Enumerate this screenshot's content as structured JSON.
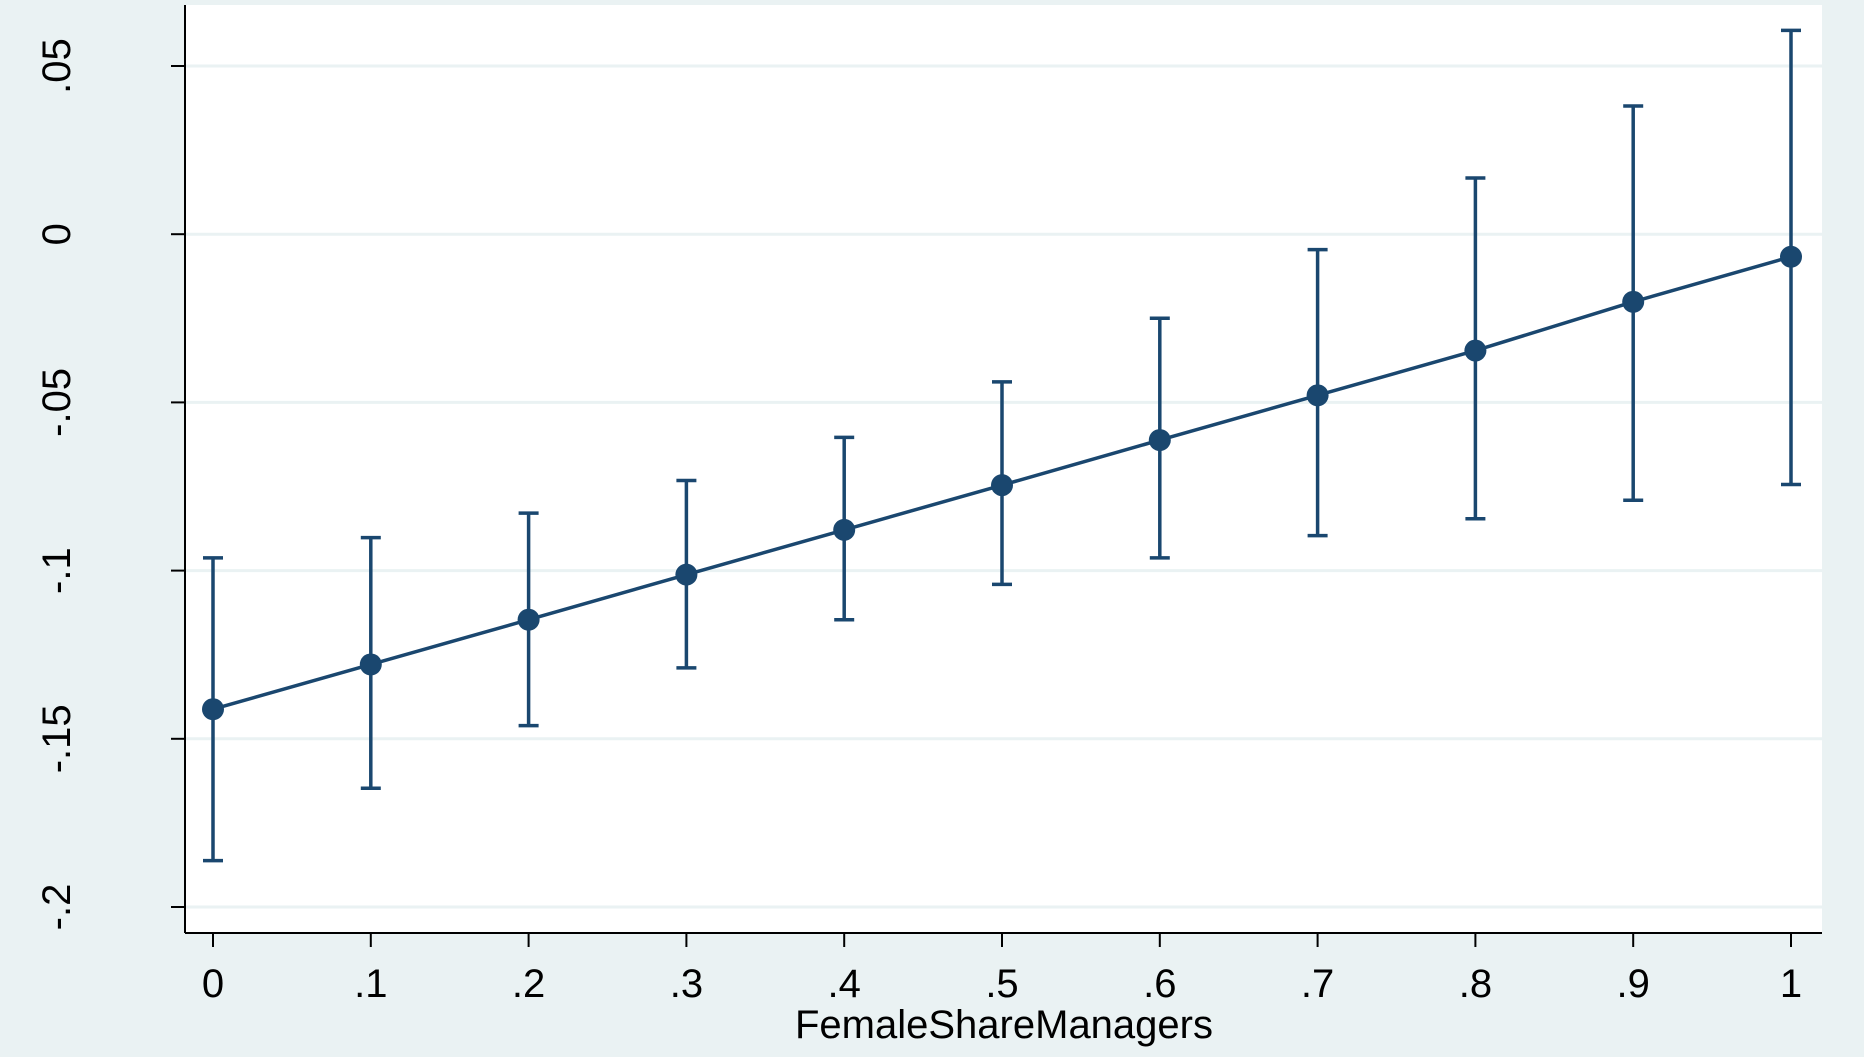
{
  "chart_data": {
    "type": "line",
    "title": "",
    "xlabel": "FemaleShareManagers",
    "ylabel": "",
    "xlim": [
      0,
      1
    ],
    "ylim": [
      -0.2,
      0.05
    ],
    "x_ticks": [
      {
        "value": 0,
        "label": "0"
      },
      {
        "value": 0.1,
        "label": ".1"
      },
      {
        "value": 0.2,
        "label": ".2"
      },
      {
        "value": 0.3,
        "label": ".3"
      },
      {
        "value": 0.4,
        "label": ".4"
      },
      {
        "value": 0.5,
        "label": ".5"
      },
      {
        "value": 0.6,
        "label": ".6"
      },
      {
        "value": 0.7,
        "label": ".7"
      },
      {
        "value": 0.8,
        "label": ".8"
      },
      {
        "value": 0.9,
        "label": ".9"
      },
      {
        "value": 1,
        "label": "1"
      }
    ],
    "y_ticks": [
      {
        "value": 0.05,
        "label": ".05"
      },
      {
        "value": 0,
        "label": "0"
      },
      {
        "value": -0.05,
        "label": "-.05"
      },
      {
        "value": -0.1,
        "label": "-.1"
      },
      {
        "value": -0.15,
        "label": "-.15"
      },
      {
        "value": -0.2,
        "label": "-.2"
      }
    ],
    "grid": "horizontal",
    "legend": "none",
    "series": [
      {
        "x": [
          0,
          0.1,
          0.2,
          0.3,
          0.4,
          0.5,
          0.6,
          0.7,
          0.8,
          0.9,
          1
        ],
        "y": [
          -0.1412,
          -0.1279,
          -0.1146,
          -0.1012,
          -0.0879,
          -0.0746,
          -0.0612,
          -0.0479,
          -0.0346,
          -0.0201,
          -0.0067
        ],
        "ci_lower": [
          -0.1862,
          -0.1647,
          -0.1461,
          -0.1289,
          -0.1146,
          -0.1041,
          -0.0962,
          -0.0896,
          -0.0846,
          -0.0791,
          -0.0744
        ],
        "ci_upper": [
          -0.0962,
          -0.0902,
          -0.0829,
          -0.0732,
          -0.0604,
          -0.0439,
          -0.025,
          -0.0046,
          0.0167,
          0.0381,
          0.0606
        ]
      }
    ]
  },
  "colors": {
    "background": "#eaf2f3",
    "plot_area": "#ffffff",
    "series": "#1a476f",
    "grid": "#eaf2f3",
    "axis": "#000000"
  }
}
